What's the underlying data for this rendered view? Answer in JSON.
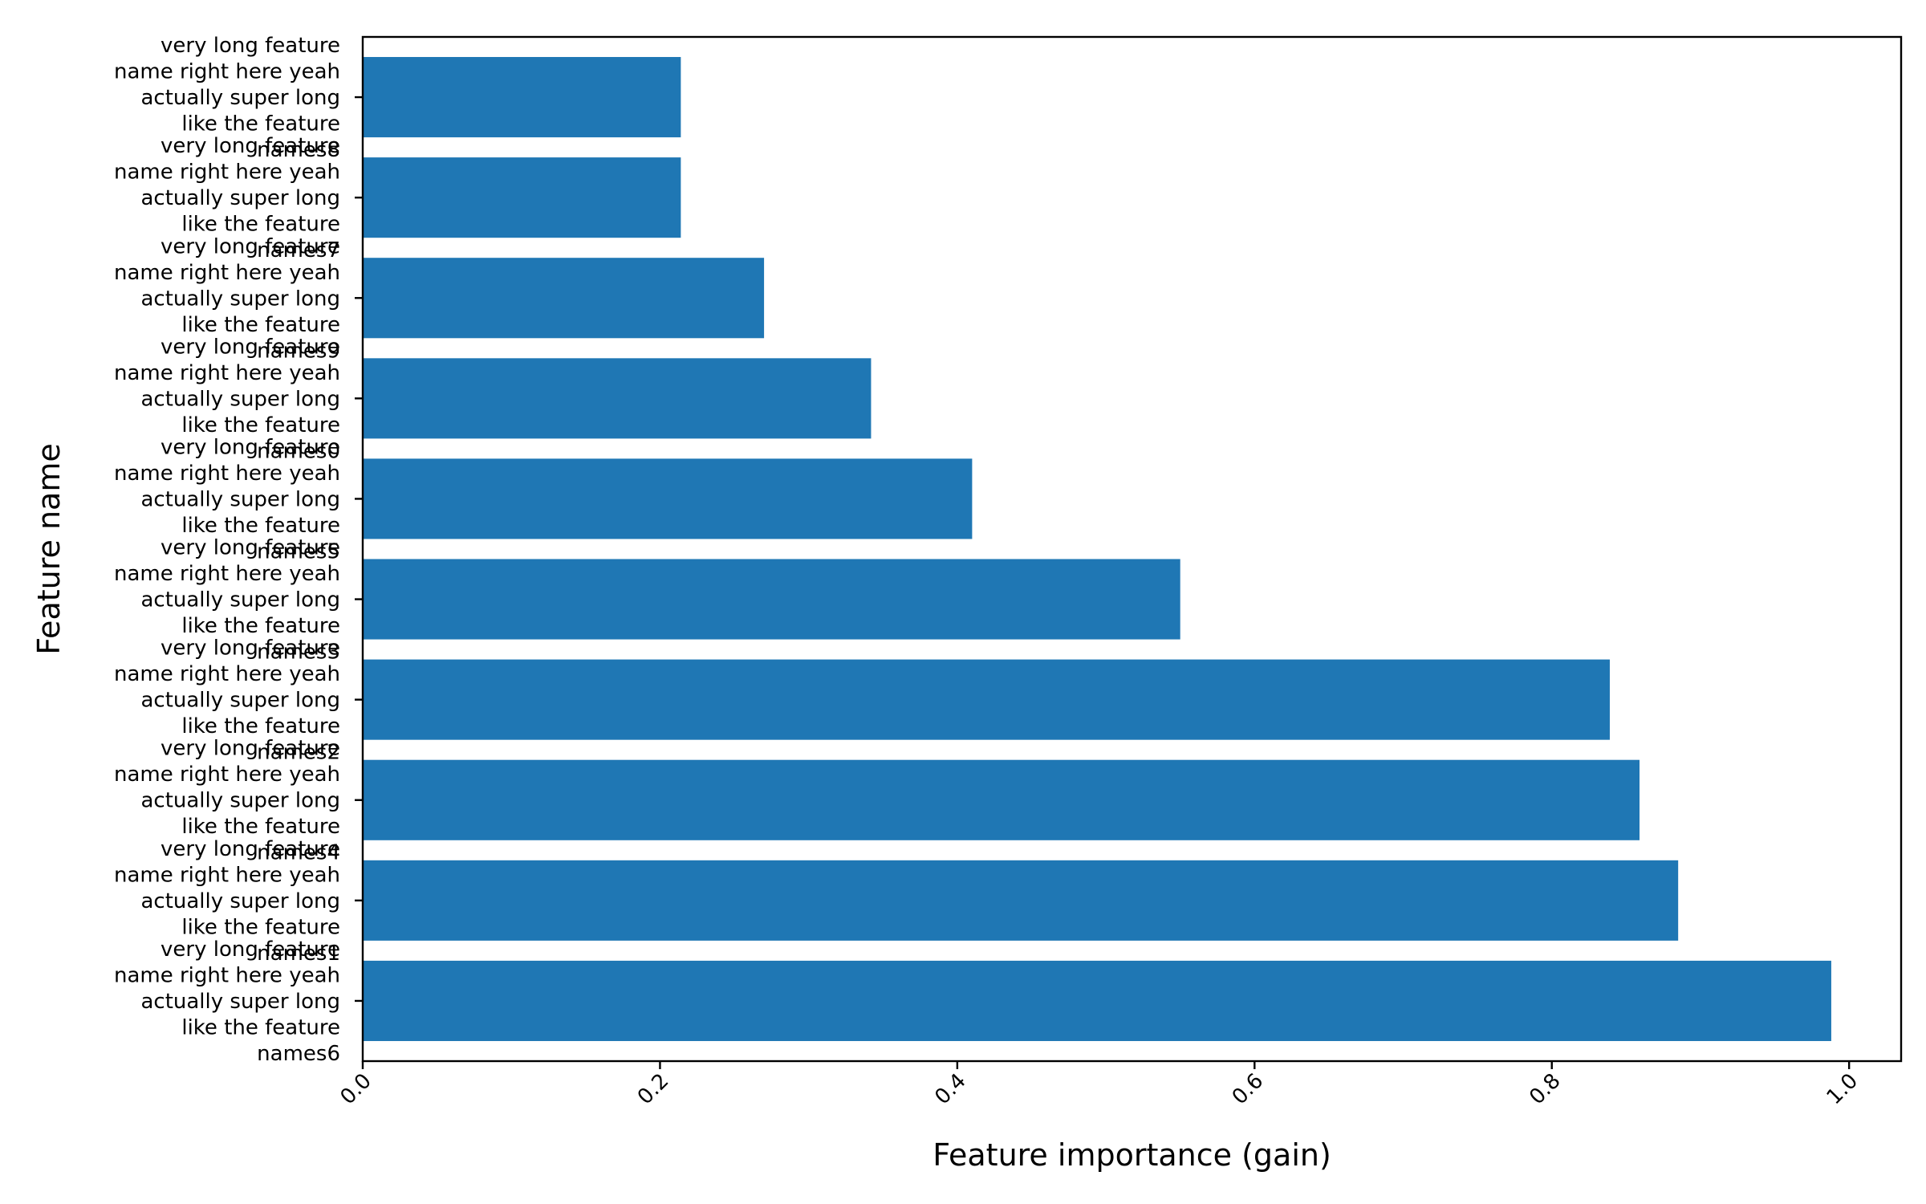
{
  "chart_data": {
    "type": "bar",
    "orientation": "horizontal",
    "xlabel": "Feature importance (gain)",
    "ylabel": "Feature name",
    "xlim": [
      0.0,
      1.035
    ],
    "xticks": [
      "0.0",
      "0.2",
      "0.4",
      "0.6",
      "0.8",
      "1.0"
    ],
    "xtick_values": [
      0.0,
      0.2,
      0.4,
      0.6,
      0.8,
      1.0
    ],
    "grid": false,
    "categories": [
      "very long feature name right here yeah actually super long like the feature names6",
      "very long feature name right here yeah actually super long like the feature names1",
      "very long feature name right here yeah actually super long like the feature names4",
      "very long feature name right here yeah actually super long like the feature names2",
      "very long feature name right here yeah actually super long like the feature names3",
      "very long feature name right here yeah actually super long like the feature names5",
      "very long feature name right here yeah actually super long like the feature names0",
      "very long feature name right here yeah actually super long like the feature names9",
      "very long feature name right here yeah actually super long like the feature names7",
      "very long feature name right here yeah actually super long like the feature names8"
    ],
    "category_lines": [
      [
        "very long feature",
        "name right here yeah",
        "actually super long",
        "like the feature",
        "names6"
      ],
      [
        "very long feature",
        "name right here yeah",
        "actually super long",
        "like the feature",
        "names1"
      ],
      [
        "very long feature",
        "name right here yeah",
        "actually super long",
        "like the feature",
        "names4"
      ],
      [
        "very long feature",
        "name right here yeah",
        "actually super long",
        "like the feature",
        "names2"
      ],
      [
        "very long feature",
        "name right here yeah",
        "actually super long",
        "like the feature",
        "names3"
      ],
      [
        "very long feature",
        "name right here yeah",
        "actually super long",
        "like the feature",
        "names5"
      ],
      [
        "very long feature",
        "name right here yeah",
        "actually super long",
        "like the feature",
        "names0"
      ],
      [
        "very long feature",
        "name right here yeah",
        "actually super long",
        "like the feature",
        "names9"
      ],
      [
        "very long feature",
        "name right here yeah",
        "actually super long",
        "like the feature",
        "names7"
      ],
      [
        "very long feature",
        "name right here yeah",
        "actually super long",
        "like the feature",
        "names8"
      ]
    ],
    "values": [
      0.988,
      0.885,
      0.859,
      0.839,
      0.55,
      0.41,
      0.342,
      0.27,
      0.214,
      0.214
    ],
    "bar_color": "#1f77b4"
  }
}
